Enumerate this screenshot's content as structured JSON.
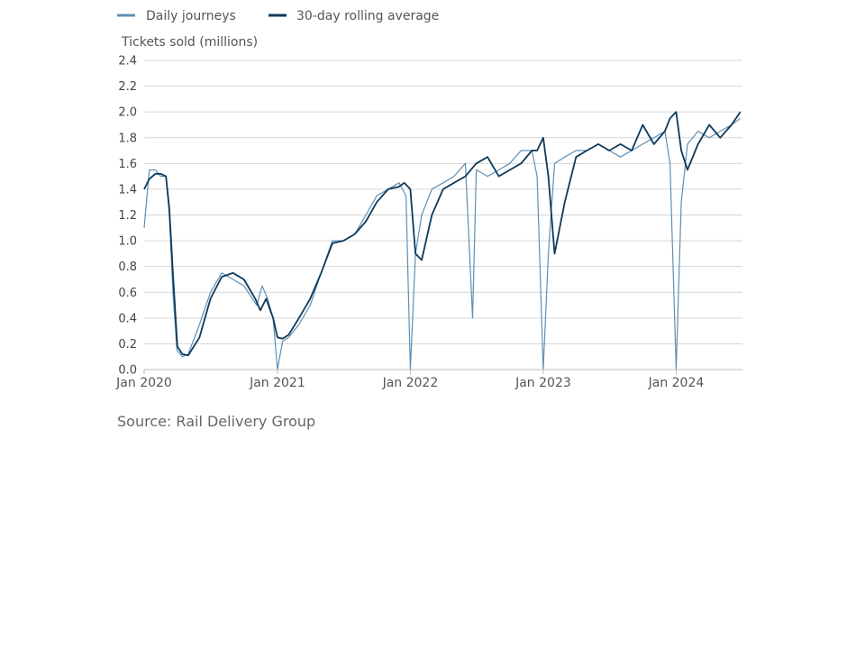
{
  "chart_data": {
    "type": "line",
    "title": "",
    "ylabel": "Tickets sold (millions)",
    "xlabel": "",
    "ylim": [
      0,
      2.4
    ],
    "yticks": [
      0.0,
      0.2,
      0.4,
      0.6,
      0.8,
      1.0,
      1.2,
      1.4,
      1.6,
      1.8,
      2.0,
      2.2,
      2.4
    ],
    "ytick_labels": [
      "0.0",
      "0.2",
      "0.4",
      "0.6",
      "0.8",
      "1.0",
      "1.2",
      "1.4",
      "1.6",
      "1.8",
      "2.0",
      "2.2",
      "2.4"
    ],
    "xlim": [
      "2020-01-01",
      "2024-07-01"
    ],
    "xticks": [
      "2020-01-01",
      "2021-01-01",
      "2022-01-01",
      "2023-01-01",
      "2024-01-01"
    ],
    "xtick_labels": [
      "Jan 2020",
      "Jan 2021",
      "Jan 2022",
      "Jan 2023",
      "Jan 2024"
    ],
    "grid": "horizontal",
    "legend_position": "top-left",
    "series": [
      {
        "name": "Daily journeys",
        "color": "#5f8fb4",
        "x": [
          "2020-01-01",
          "2020-01-15",
          "2020-02-01",
          "2020-02-15",
          "2020-03-01",
          "2020-03-10",
          "2020-03-20",
          "2020-03-31",
          "2020-04-15",
          "2020-05-01",
          "2020-06-01",
          "2020-07-01",
          "2020-08-01",
          "2020-09-01",
          "2020-10-01",
          "2020-11-05",
          "2020-11-20",
          "2020-12-05",
          "2020-12-20",
          "2021-01-01",
          "2021-01-15",
          "2021-02-01",
          "2021-03-01",
          "2021-04-01",
          "2021-05-01",
          "2021-06-01",
          "2021-07-01",
          "2021-08-01",
          "2021-09-01",
          "2021-10-01",
          "2021-11-01",
          "2021-12-01",
          "2021-12-20",
          "2022-01-01",
          "2022-01-15",
          "2022-02-01",
          "2022-03-01",
          "2022-04-01",
          "2022-05-01",
          "2022-06-01",
          "2022-06-21",
          "2022-07-01",
          "2022-08-01",
          "2022-09-01",
          "2022-10-01",
          "2022-11-01",
          "2022-12-01",
          "2022-12-15",
          "2023-01-01",
          "2023-01-15",
          "2023-02-01",
          "2023-03-01",
          "2023-04-01",
          "2023-05-01",
          "2023-06-01",
          "2023-07-01",
          "2023-08-01",
          "2023-09-01",
          "2023-10-01",
          "2023-11-01",
          "2023-12-01",
          "2023-12-15",
          "2024-01-01",
          "2024-01-15",
          "2024-02-01",
          "2024-03-01",
          "2024-04-01",
          "2024-05-01",
          "2024-06-01",
          "2024-06-25"
        ],
        "values": [
          1.1,
          1.55,
          1.55,
          1.5,
          1.5,
          1.2,
          0.6,
          0.15,
          0.1,
          0.12,
          0.35,
          0.6,
          0.75,
          0.7,
          0.65,
          0.5,
          0.65,
          0.55,
          0.4,
          0.0,
          0.22,
          0.25,
          0.35,
          0.5,
          0.75,
          1.0,
          1.0,
          1.05,
          1.2,
          1.35,
          1.4,
          1.45,
          1.35,
          0.0,
          0.9,
          1.2,
          1.4,
          1.45,
          1.5,
          1.6,
          0.4,
          1.55,
          1.5,
          1.55,
          1.6,
          1.7,
          1.7,
          1.5,
          0.0,
          0.9,
          1.6,
          1.65,
          1.7,
          1.7,
          1.75,
          1.7,
          1.65,
          1.7,
          1.75,
          1.8,
          1.85,
          1.6,
          0.0,
          1.3,
          1.75,
          1.85,
          1.8,
          1.85,
          1.9,
          1.95
        ]
      },
      {
        "name": "30-day rolling average",
        "color": "#0d3a5a",
        "x": [
          "2020-01-01",
          "2020-01-15",
          "2020-02-01",
          "2020-02-15",
          "2020-03-01",
          "2020-03-10",
          "2020-03-20",
          "2020-04-01",
          "2020-04-15",
          "2020-05-01",
          "2020-06-01",
          "2020-07-01",
          "2020-08-01",
          "2020-09-01",
          "2020-10-01",
          "2020-11-01",
          "2020-11-15",
          "2020-12-01",
          "2020-12-20",
          "2021-01-01",
          "2021-01-15",
          "2021-02-01",
          "2021-03-01",
          "2021-04-01",
          "2021-05-01",
          "2021-06-01",
          "2021-07-01",
          "2021-08-01",
          "2021-09-01",
          "2021-10-01",
          "2021-11-01",
          "2021-12-01",
          "2021-12-15",
          "2022-01-01",
          "2022-01-15",
          "2022-02-01",
          "2022-03-01",
          "2022-04-01",
          "2022-05-01",
          "2022-06-01",
          "2022-07-01",
          "2022-08-01",
          "2022-09-01",
          "2022-10-01",
          "2022-11-01",
          "2022-12-01",
          "2022-12-15",
          "2023-01-01",
          "2023-01-15",
          "2023-02-01",
          "2023-03-01",
          "2023-04-01",
          "2023-05-01",
          "2023-06-01",
          "2023-07-01",
          "2023-08-01",
          "2023-09-01",
          "2023-10-01",
          "2023-11-01",
          "2023-12-01",
          "2023-12-15",
          "2024-01-01",
          "2024-01-15",
          "2024-02-01",
          "2024-03-01",
          "2024-04-01",
          "2024-05-01",
          "2024-06-01",
          "2024-06-25"
        ],
        "values": [
          1.4,
          1.48,
          1.52,
          1.52,
          1.5,
          1.25,
          0.75,
          0.18,
          0.12,
          0.11,
          0.25,
          0.55,
          0.72,
          0.75,
          0.7,
          0.55,
          0.46,
          0.55,
          0.4,
          0.25,
          0.24,
          0.27,
          0.4,
          0.55,
          0.75,
          0.98,
          1.0,
          1.05,
          1.15,
          1.3,
          1.4,
          1.42,
          1.45,
          1.4,
          0.9,
          0.85,
          1.2,
          1.4,
          1.45,
          1.5,
          1.6,
          1.65,
          1.5,
          1.55,
          1.6,
          1.7,
          1.7,
          1.8,
          1.5,
          0.9,
          1.3,
          1.65,
          1.7,
          1.75,
          1.7,
          1.75,
          1.7,
          1.9,
          1.75,
          1.85,
          1.95,
          2.0,
          1.7,
          1.55,
          1.75,
          1.9,
          1.8,
          1.9,
          2.0
        ]
      }
    ]
  },
  "legend": {
    "daily_label": "Daily journeys",
    "avg_label": "30-day rolling average"
  },
  "colors": {
    "daily": "#5f8fb4",
    "average": "#0d3a5a"
  },
  "source_text": "Source: Rail Delivery Group"
}
